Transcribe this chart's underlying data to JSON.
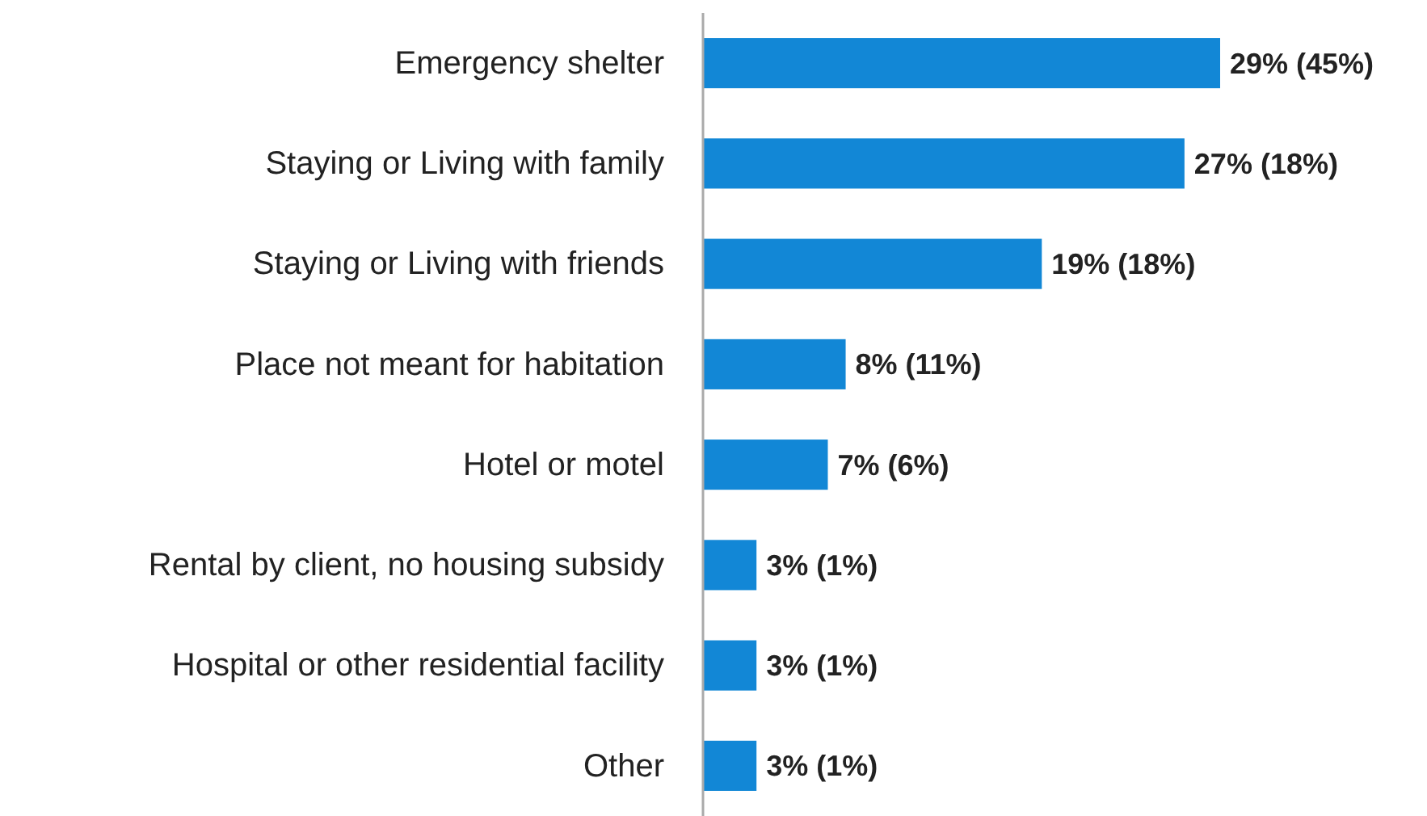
{
  "chart_data": {
    "type": "bar",
    "orientation": "horizontal",
    "categories": [
      "Emergency shelter",
      "Staying or Living with family",
      "Staying or Living with friends",
      "Place not meant for habitation",
      "Hotel or motel",
      "Rental by client, no housing subsidy",
      "Hospital or other residential facility",
      "Other"
    ],
    "values": [
      29,
      27,
      19,
      8,
      7,
      3,
      3,
      3
    ],
    "value_labels": [
      "29% (45%)",
      "27% (18%)",
      "19% (18%)",
      "8% (11%)",
      "7% (6%)",
      "3% (1%)",
      "3% (1%)",
      "3% (1%)"
    ],
    "color": "#1287d6"
  }
}
